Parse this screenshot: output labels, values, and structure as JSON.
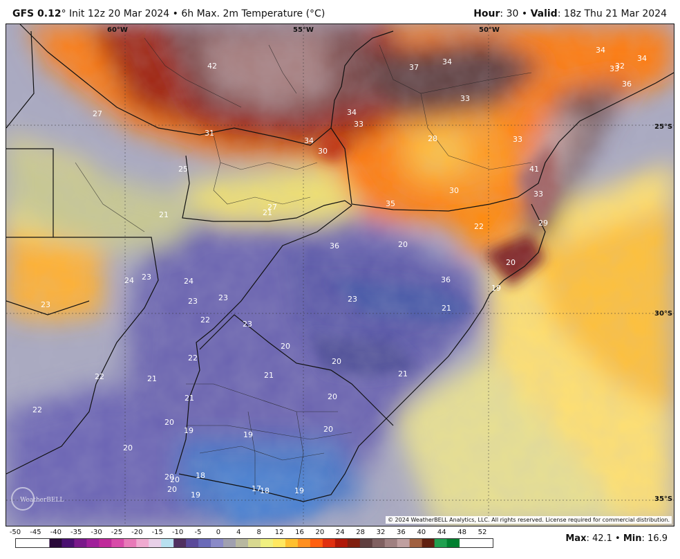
{
  "header": {
    "model": "GFS 0.12",
    "model_suffix": "° Init 12z 20 Mar 2024 • 6h Max. 2m Temperature (°C)",
    "hour_label": "Hour",
    "hour_value": ": 30 •",
    "valid_label": "Valid",
    "valid_value": ": 18z Thu 21 Mar 2024"
  },
  "map": {
    "coord_labels": {
      "lon_60w": "60°W",
      "lon_55w": "55°W",
      "lon_50w": "50°W",
      "lat_25s": "25°S",
      "lat_30s": "30°S",
      "lat_35s": "35°S"
    },
    "point_values": [
      {
        "label": "42"
      },
      {
        "label": "37"
      },
      {
        "label": "34"
      },
      {
        "label": "34"
      },
      {
        "label": "33"
      },
      {
        "label": "32"
      },
      {
        "label": "34"
      },
      {
        "label": "36"
      },
      {
        "label": "27"
      },
      {
        "label": "33"
      },
      {
        "label": "34"
      },
      {
        "label": "33"
      },
      {
        "label": "31"
      },
      {
        "label": "34"
      },
      {
        "label": "30"
      },
      {
        "label": "28"
      },
      {
        "label": "33"
      },
      {
        "label": "25"
      },
      {
        "label": "41"
      },
      {
        "label": "30"
      },
      {
        "label": "33"
      },
      {
        "label": "35"
      },
      {
        "label": "27"
      },
      {
        "label": "21"
      },
      {
        "label": "21"
      },
      {
        "label": "22"
      },
      {
        "label": "29"
      },
      {
        "label": "36"
      },
      {
        "label": "20"
      },
      {
        "label": "20"
      },
      {
        "label": "36"
      },
      {
        "label": "19"
      },
      {
        "label": "24"
      },
      {
        "label": "23"
      },
      {
        "label": "24"
      },
      {
        "label": "23"
      },
      {
        "label": "23"
      },
      {
        "label": "21"
      },
      {
        "label": "23"
      },
      {
        "label": "22"
      },
      {
        "label": "23"
      },
      {
        "label": "23"
      },
      {
        "label": "20"
      },
      {
        "label": "20"
      },
      {
        "label": "22"
      },
      {
        "label": "21"
      },
      {
        "label": "22"
      },
      {
        "label": "21"
      },
      {
        "label": "21"
      },
      {
        "label": "20"
      },
      {
        "label": "22"
      },
      {
        "label": "21"
      },
      {
        "label": "20"
      },
      {
        "label": "19"
      },
      {
        "label": "19"
      },
      {
        "label": "20"
      },
      {
        "label": "20"
      },
      {
        "label": "18"
      },
      {
        "label": "20"
      },
      {
        "label": "20"
      },
      {
        "label": "20"
      },
      {
        "label": "19"
      },
      {
        "label": "17"
      },
      {
        "label": "18"
      },
      {
        "label": "19"
      }
    ]
  },
  "copyright": "© 2024 WeatherBELL Analytics, LLC. All rights reserved. License required for commercial distribution.",
  "logo_text": "WeatherBELL",
  "legend": {
    "ticks": [
      "-50",
      "-45",
      "-40",
      "-35",
      "-30",
      "-25",
      "-20",
      "-15",
      "-10",
      "-5",
      "0",
      "4",
      "8",
      "12",
      "16",
      "20",
      "24",
      "28",
      "32",
      "36",
      "40",
      "44",
      "48",
      "52"
    ],
    "colors": [
      "#2a0a3a",
      "#4a1070",
      "#7a1a8a",
      "#a0209a",
      "#c02a9a",
      "#d84aa8",
      "#e87ab8",
      "#f0aad0",
      "#e8d0e8",
      "#b8e0f0",
      "#7ad0f0",
      "#40b0d8",
      "#208898",
      "#2a6a6a",
      "#3a4a50",
      "#5a3a5a",
      "#7a2a5a",
      "#9a2a50",
      "#b83a4a",
      "#c85a5a",
      "#d87a78",
      "#e0a0a0",
      "#9ad0a8",
      "#40b068",
      "#108838"
    ],
    "colors_hot": [
      "#503060",
      "#5a4a9a",
      "#6a6ab8",
      "#8a8ac8",
      "#a0a0b0",
      "#b8b8a0",
      "#d8d890",
      "#f0f080",
      "#ffe860",
      "#ffc030",
      "#ff9020",
      "#ff6010",
      "#e03010",
      "#b01808",
      "#802010",
      "#604040",
      "#806060",
      "#a08080",
      "#c0a0a0",
      "#a06040",
      "#602010",
      "#20a050",
      "#008030"
    ]
  },
  "stats": {
    "max_label": "Max",
    "max_value": ": 42.1 •",
    "min_label": "Min",
    "min_value": ": 16.9"
  }
}
